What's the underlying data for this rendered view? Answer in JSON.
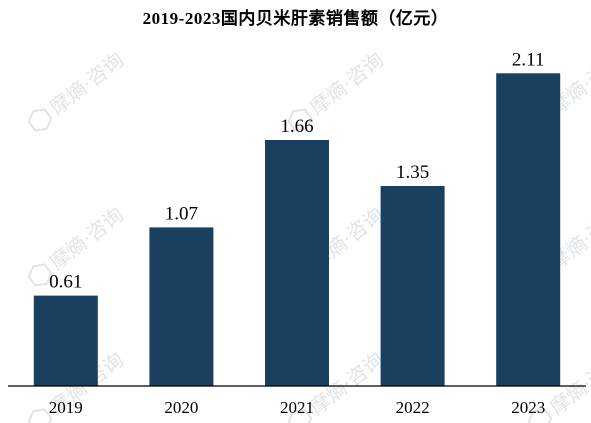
{
  "watermark": {
    "text": "摩熵·咨询",
    "icon": "hexagon-logo-icon"
  },
  "colors": {
    "bar": "#1b3f5f",
    "axis": "#000000",
    "text": "#000000"
  },
  "chart_data": {
    "type": "bar",
    "title": "2019-2023国内贝米肝素销售额（亿元）",
    "xlabel": "",
    "ylabel": "",
    "categories": [
      "2019",
      "2020",
      "2021",
      "2022",
      "2023"
    ],
    "values": [
      0.61,
      1.07,
      1.66,
      1.35,
      2.11
    ],
    "data_labels": [
      "0.61",
      "1.07",
      "1.66",
      "1.35",
      "2.11"
    ],
    "ylim": [
      0,
      2.2
    ],
    "grid": false,
    "legend": "none"
  }
}
